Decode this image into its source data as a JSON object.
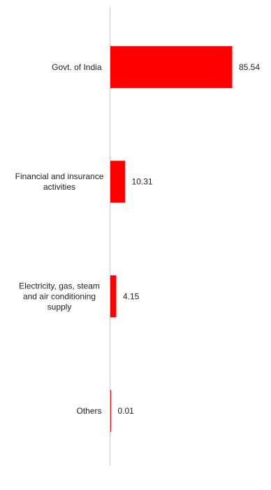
{
  "chart_data": {
    "type": "bar",
    "orientation": "horizontal",
    "categories": [
      [
        "Govt. of India"
      ],
      [
        "Financial and insurance",
        "activities"
      ],
      [
        "Electricity, gas, steam",
        "and air conditioning",
        "supply"
      ],
      [
        "Others"
      ]
    ],
    "values": [
      85.54,
      10.31,
      4.15,
      0.01
    ],
    "value_labels": [
      "85.54",
      "10.31",
      "4.15",
      "0.01"
    ],
    "xlim": [
      0,
      100
    ],
    "grid": false,
    "legend": "none",
    "colors": {
      "bar": "#ff0000",
      "axis": "#c8c8c8",
      "text": "#222222"
    }
  }
}
